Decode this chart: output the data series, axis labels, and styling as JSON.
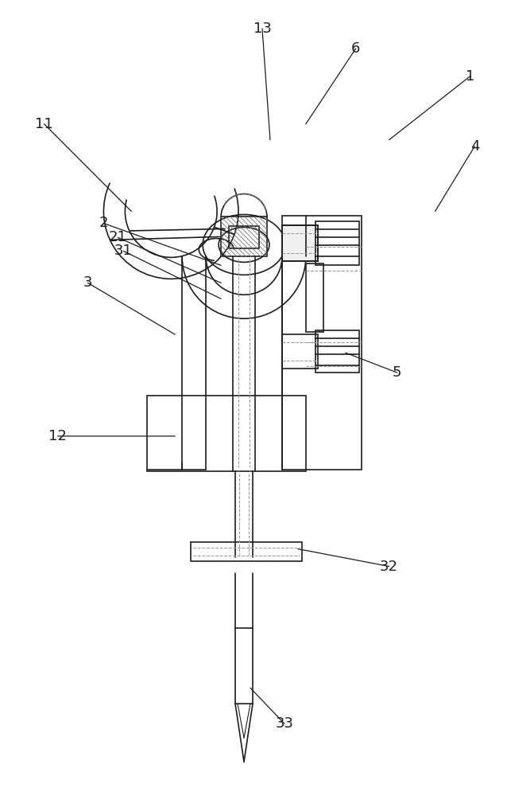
{
  "bg": "#ffffff",
  "lc": "#1e1e1e",
  "ld": "#999999",
  "lh": "#777777",
  "lw": 1.2,
  "lt": 0.75,
  "fs": 13,
  "figsize": [
    6.38,
    10.0
  ],
  "labels": [
    [
      "1",
      592,
      95,
      490,
      175
    ],
    [
      "4",
      598,
      183,
      548,
      265
    ],
    [
      "6",
      448,
      60,
      385,
      155
    ],
    [
      "13",
      330,
      35,
      340,
      175
    ],
    [
      "11",
      55,
      155,
      165,
      265
    ],
    [
      "2",
      130,
      280,
      278,
      333
    ],
    [
      "21",
      148,
      298,
      278,
      355
    ],
    [
      "31",
      155,
      315,
      278,
      375
    ],
    [
      "3",
      110,
      355,
      220,
      420
    ],
    [
      "12",
      72,
      548,
      220,
      548
    ],
    [
      "5",
      500,
      468,
      435,
      443
    ],
    [
      "32",
      490,
      712,
      375,
      690
    ],
    [
      "33",
      358,
      910,
      315,
      865
    ]
  ]
}
